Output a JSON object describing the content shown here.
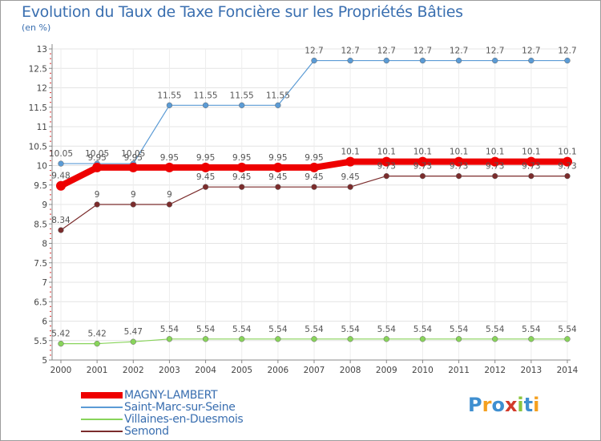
{
  "title": "Evolution du Taux de Taxe Foncière sur les Propriétés Bâties",
  "unit": "(en %)",
  "logo": {
    "letters": [
      "P",
      "r",
      "o",
      "x",
      "i",
      "t",
      "i"
    ],
    "colors": [
      "#3f8fd0",
      "#f4a020",
      "#3f8fd0",
      "#d23a2a",
      "#8cc63f",
      "#3f8fd0",
      "#f4a020"
    ]
  },
  "chart_data": {
    "type": "line",
    "title": "Evolution du Taux de Taxe Foncière sur les Propriétés Bâties",
    "ylabel": "(en %)",
    "x": [
      "2000",
      "2001",
      "2002",
      "2003",
      "2004",
      "2005",
      "2006",
      "2007",
      "2008",
      "2009",
      "2010",
      "2011",
      "2012",
      "2013",
      "2014"
    ],
    "ylim": [
      5,
      13
    ],
    "yticks": [
      "5",
      "5.5",
      "6",
      "6.5",
      "7",
      "7.5",
      "8",
      "8.5",
      "9",
      "9.5",
      "10",
      "10.5",
      "11",
      "11.5",
      "12",
      "12.5",
      "13"
    ],
    "series": [
      {
        "name": "MAGNY-LAMBERT",
        "color": "#ee0000",
        "values": [
          9.48,
          9.95,
          9.95,
          9.95,
          9.95,
          9.95,
          9.95,
          9.95,
          10.1,
          10.1,
          10.1,
          10.1,
          10.1,
          10.1,
          10.1
        ],
        "labels": [
          "9.48",
          "9.95",
          "9.95",
          "9.95",
          "9.95",
          "9.95",
          "9.95",
          "9.95",
          "10.1",
          "10.1",
          "10.1",
          "10.1",
          "10.1",
          "10.1",
          "10.1"
        ]
      },
      {
        "name": "Saint-Marc-sur-Seine",
        "color": "#5b9bd5",
        "values": [
          10.05,
          10.05,
          10.05,
          11.55,
          11.55,
          11.55,
          11.55,
          12.7,
          12.7,
          12.7,
          12.7,
          12.7,
          12.7,
          12.7,
          12.7
        ],
        "labels": [
          "10.05",
          "10.05",
          "10.05",
          "11.55",
          "11.55",
          "11.55",
          "11.55",
          "12.7",
          "12.7",
          "12.7",
          "12.7",
          "12.7",
          "12.7",
          "12.7",
          "12.7"
        ]
      },
      {
        "name": "Villaines-en-Duesmois",
        "color": "#88d45a",
        "values": [
          5.42,
          5.42,
          5.47,
          5.54,
          5.54,
          5.54,
          5.54,
          5.54,
          5.54,
          5.54,
          5.54,
          5.54,
          5.54,
          5.54,
          5.54
        ],
        "labels": [
          "5.42",
          "5.42",
          "5.47",
          "5.54",
          "5.54",
          "5.54",
          "5.54",
          "5.54",
          "5.54",
          "5.54",
          "5.54",
          "5.54",
          "5.54",
          "5.54",
          "5.54"
        ]
      },
      {
        "name": "Semond",
        "color": "#7b2c2c",
        "values": [
          8.34,
          9,
          9,
          9,
          9.45,
          9.45,
          9.45,
          9.45,
          9.45,
          9.73,
          9.73,
          9.73,
          9.73,
          9.73,
          9.73
        ],
        "labels": [
          "8.34",
          "9",
          "9",
          "9",
          "9.45",
          "9.45",
          "9.45",
          "9.45",
          "9.45",
          "9.73",
          "9.73",
          "9.73",
          "9.73",
          "9.73",
          "9.73"
        ]
      }
    ],
    "legend_position": "bottom-left"
  }
}
